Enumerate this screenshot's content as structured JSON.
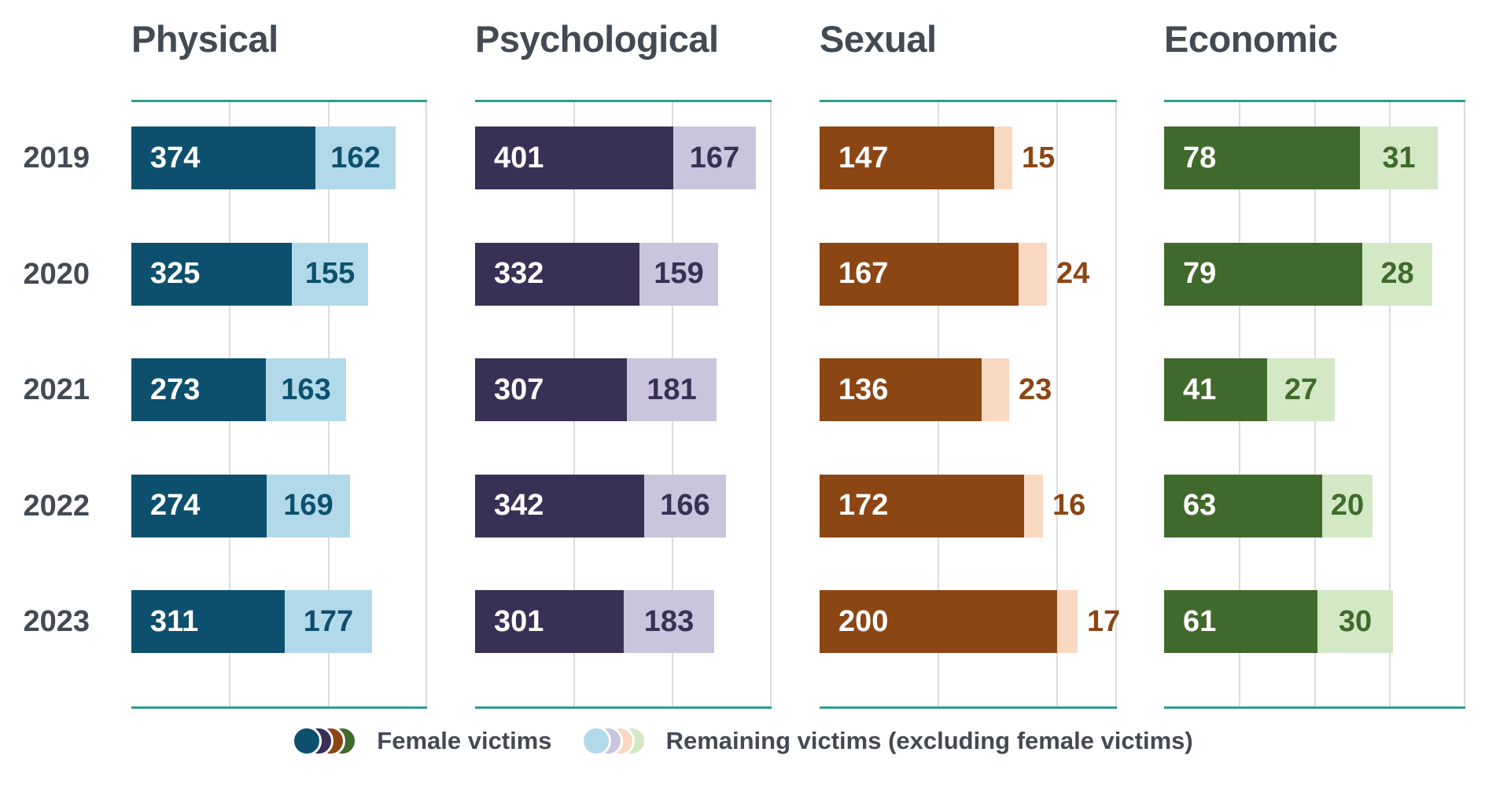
{
  "chart_data": {
    "type": "bar",
    "orientation": "horizontal",
    "stacked": true,
    "grid": true,
    "categories": [
      "2019",
      "2020",
      "2021",
      "2022",
      "2023"
    ],
    "series_names": [
      "Female victims",
      "Remaining victims (excluding female victims)"
    ],
    "panels": [
      {
        "title": "Physical",
        "axis_min": 0,
        "axis_max": 600,
        "grid_step": 200,
        "female_color": "#0d506e",
        "remaining_color": "#b2d9ea",
        "female": [
          374,
          325,
          273,
          274,
          311
        ],
        "remaining": [
          162,
          155,
          163,
          169,
          177
        ]
      },
      {
        "title": "Psychological",
        "axis_min": 0,
        "axis_max": 600,
        "grid_step": 200,
        "female_color": "#393056",
        "remaining_color": "#cac4dd",
        "female": [
          401,
          332,
          307,
          342,
          301
        ],
        "remaining": [
          167,
          159,
          181,
          166,
          183
        ]
      },
      {
        "title": "Sexual",
        "axis_min": 0,
        "axis_max": 250,
        "grid_step": 100,
        "female_color": "#8c4614",
        "remaining_color": "#f9d8c1",
        "female": [
          147,
          167,
          136,
          172,
          200
        ],
        "remaining": [
          15,
          24,
          23,
          16,
          17
        ]
      },
      {
        "title": "Economic",
        "axis_min": 0,
        "axis_max": 120,
        "grid_step": 30,
        "female_color": "#406a2c",
        "remaining_color": "#d3e8c5",
        "female": [
          78,
          79,
          41,
          63,
          61
        ],
        "remaining": [
          31,
          28,
          27,
          20,
          30
        ]
      }
    ],
    "legend": [
      {
        "label": "Female victims",
        "dot_colors": [
          "#0d506e",
          "#393056",
          "#8c4614",
          "#406a2c"
        ]
      },
      {
        "label": "Remaining victims (excluding female victims)",
        "dot_colors": [
          "#b2d9ea",
          "#cac4dd",
          "#f9d8c1",
          "#d3e8c5"
        ]
      }
    ],
    "styles": {
      "rule_color": "#2e9d93",
      "gridline_color": "#dcdcdc",
      "text_color": "#434a53",
      "bar_label_inside_color": "#ffffff"
    }
  }
}
